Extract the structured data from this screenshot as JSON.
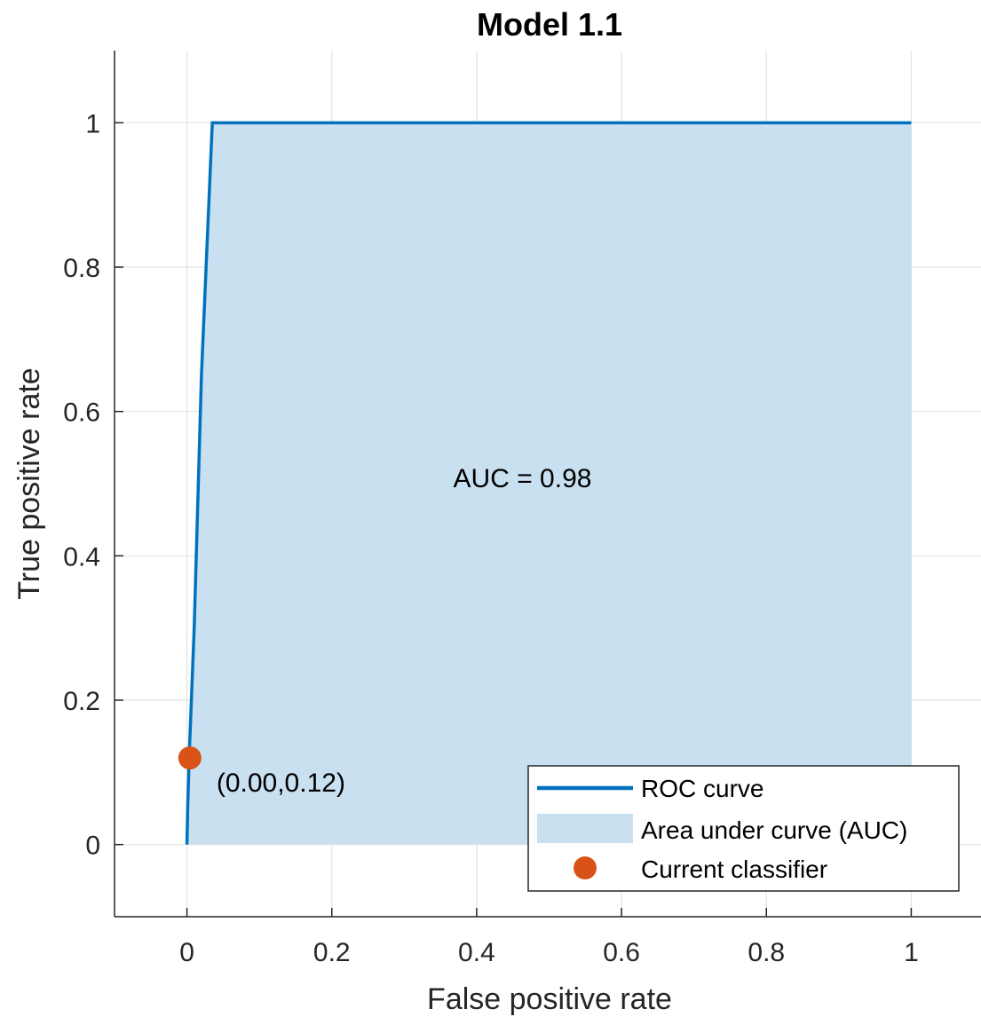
{
  "chart_data": {
    "type": "line",
    "title": "Model 1.1",
    "xlabel": "False positive rate",
    "ylabel": "True positive rate",
    "xlim": [
      -0.1,
      1.1
    ],
    "ylim": [
      -0.1,
      1.1
    ],
    "xticks": [
      0,
      0.2,
      0.4,
      0.6,
      0.8,
      1
    ],
    "xtick_labels": [
      "0",
      "0.2",
      "0.4",
      "0.6",
      "0.8",
      "1"
    ],
    "yticks": [
      0,
      0.2,
      0.4,
      0.6,
      0.8,
      1
    ],
    "ytick_labels": [
      "0",
      "0.2",
      "0.4",
      "0.6",
      "0.8",
      "1"
    ],
    "grid": true,
    "series": [
      {
        "name": "ROC curve",
        "x": [
          0,
          0.001,
          0.003,
          0.01,
          0.02,
          0.035,
          1.0
        ],
        "y": [
          0,
          0.05,
          0.12,
          0.3,
          0.65,
          1.0,
          1.0
        ],
        "color": "#0072BD"
      }
    ],
    "area": {
      "name": "Area under curve (AUC)",
      "color": "#C9E0F0"
    },
    "point": {
      "name": "Current classifier",
      "x": 0.004,
      "y": 0.12,
      "color": "#D95319",
      "label": "(0.00,0.12)"
    },
    "annotation": {
      "text": "AUC = 0.98",
      "x": 0.5,
      "y": 0.5
    },
    "legend": {
      "location": "bottom-right",
      "entries": [
        "ROC curve",
        "Area under curve (AUC)",
        "Current classifier"
      ]
    }
  }
}
